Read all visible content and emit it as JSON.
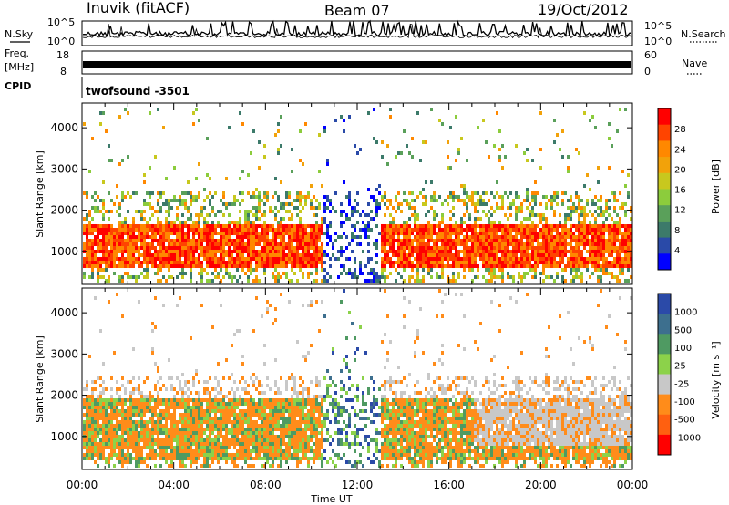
{
  "header": {
    "radar": "Inuvik (fitACF)",
    "beam": "Beam 07",
    "date": "19/Oct/2012"
  },
  "summary": {
    "nsky_label": "N.Sky",
    "nsky_ticks": [
      "10^5",
      "10^0"
    ],
    "nsearch_label": "N.Search",
    "nsearch_ticks": [
      "10^5",
      "10^0"
    ],
    "freq_label_line1": "Freq.",
    "freq_label_line2": "[MHz]",
    "freq_ticks": [
      "18",
      "8"
    ],
    "nave_label": "Nave",
    "nave_ticks": [
      "60",
      "0"
    ],
    "cpid_label": "CPID",
    "cpid_value": "twofsound -3501"
  },
  "chart_data": [
    {
      "type": "heatmap",
      "title": "",
      "ylabel": "Slant Range [km]",
      "xlabel": "Time UT",
      "y_ticks": [
        "4000",
        "3000",
        "2000",
        "1000"
      ],
      "ylim": [
        200,
        4600
      ],
      "colorbar_label": "Power [dB]",
      "colorbar_ticks": [
        "28",
        "24",
        "20",
        "16",
        "12",
        "8",
        "4"
      ],
      "colorbar_colors": [
        "#ff0000",
        "#ff4400",
        "#ff8800",
        "#f2a20a",
        "#c8c81e",
        "#8ccc3c",
        "#5aa05a",
        "#3c7a6a",
        "#2a4aa8",
        "#0000ff"
      ],
      "echo_band_km": [
        600,
        1700
      ],
      "gap_hours": [
        10.5,
        13.0
      ]
    },
    {
      "type": "heatmap",
      "title": "",
      "ylabel": "Slant Range [km]",
      "xlabel": "Time UT",
      "y_ticks": [
        "4000",
        "3000",
        "2000",
        "1000"
      ],
      "ylim": [
        200,
        4600
      ],
      "colorbar_label": "Velocity [m s⁻¹]",
      "colorbar_ticks": [
        "1000",
        "500",
        "100",
        "25",
        "-25",
        "-100",
        "-500",
        "-1000"
      ],
      "colorbar_colors": [
        "#2b4aa8",
        "#3d6f8e",
        "#4f9a62",
        "#8cd24a",
        "#c8c8c8",
        "#ff8c1a",
        "#ff6010",
        "#ff0000"
      ],
      "echo_band_km": [
        500,
        2000
      ],
      "gap_hours": [
        10.5,
        13.0
      ]
    }
  ],
  "x_axis": {
    "ticks": [
      "00:00",
      "04:00",
      "08:00",
      "12:00",
      "16:00",
      "20:00",
      "00:00"
    ],
    "label": "Time UT"
  }
}
